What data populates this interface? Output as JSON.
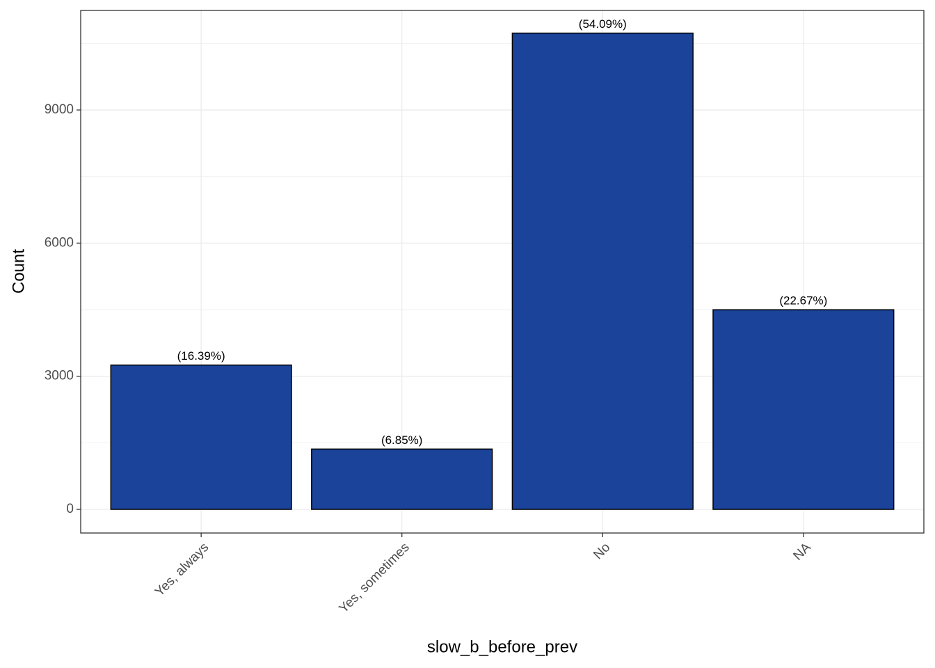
{
  "chart_data": {
    "type": "bar",
    "x_label": "slow_b_before_prev",
    "y_label": "Count",
    "categories": [
      "Yes, always",
      "Yes, sometimes",
      "No",
      "NA"
    ],
    "values": [
      3252,
      1359,
      10732,
      4498
    ],
    "bar_labels": [
      "(16.39%)",
      "(6.85%)",
      "(54.09%)",
      "(22.67%)"
    ],
    "color": "#1a4399",
    "ylim": [
      -533,
      11243
    ],
    "yticks": [
      0,
      3000,
      6000,
      9000
    ],
    "grid": true
  }
}
